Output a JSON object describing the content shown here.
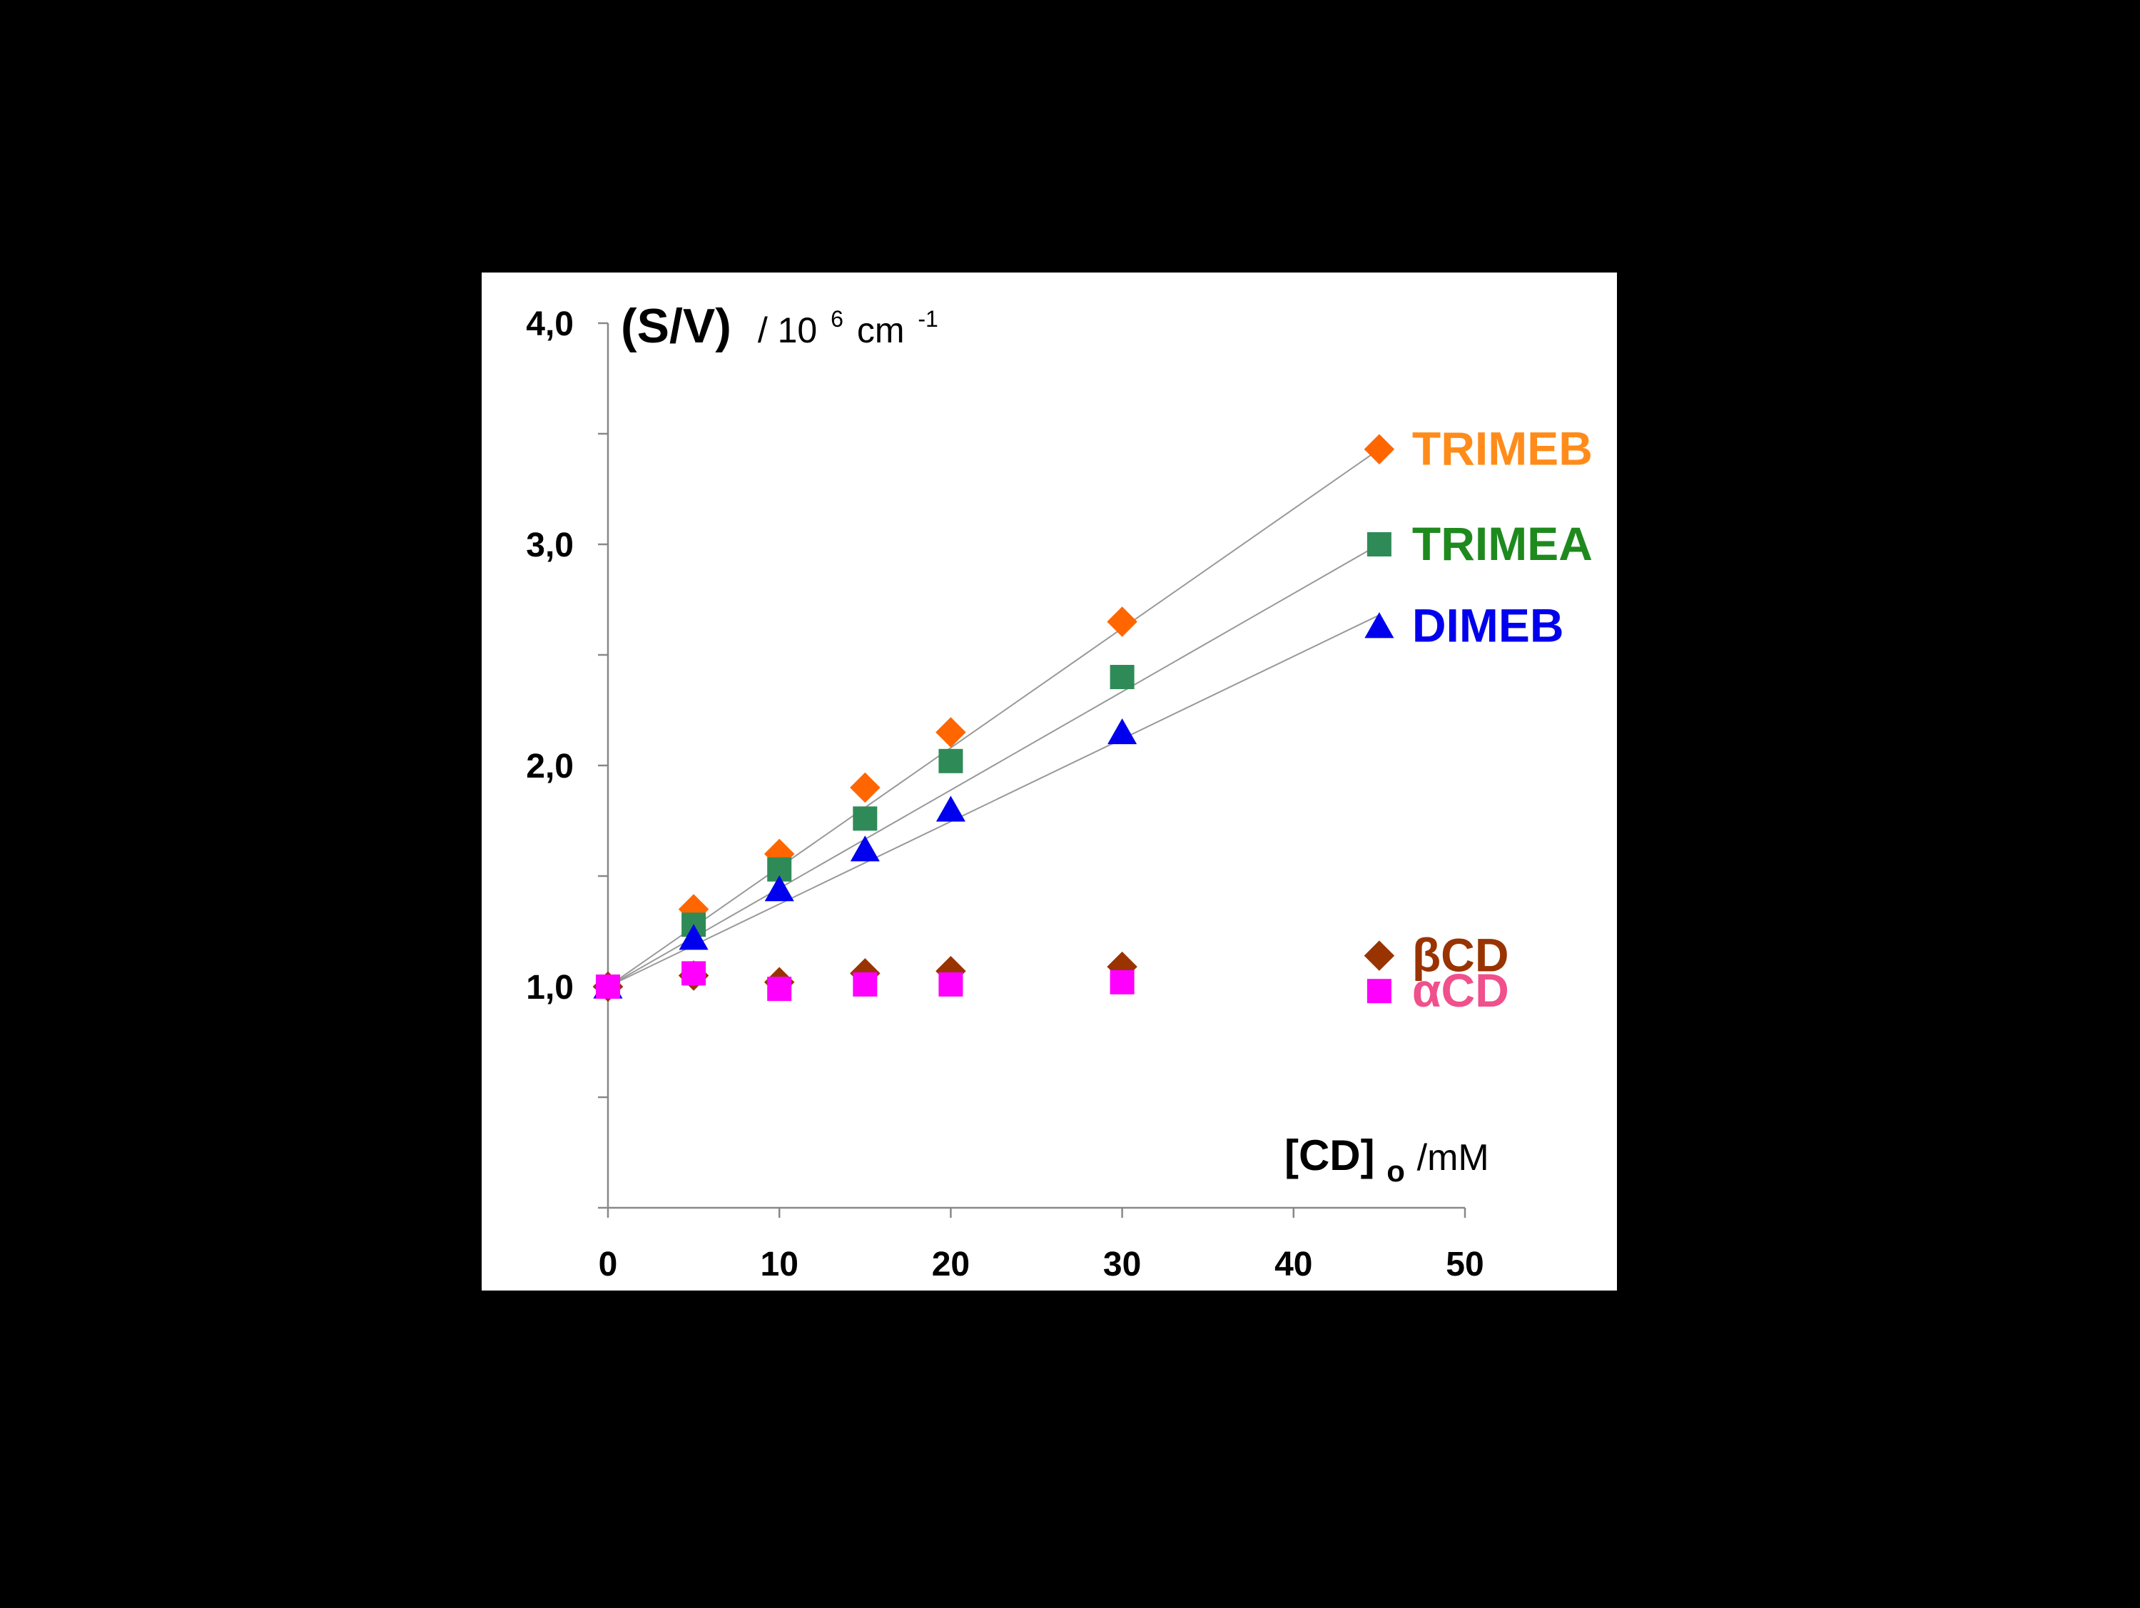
{
  "chart_data": {
    "type": "scatter",
    "title": "",
    "ylabel": {
      "main": "(S/V)",
      "unit_prefix": "/ 10",
      "unit_exp": "6",
      "unit_mid": " cm",
      "unit_exp2": "-1"
    },
    "xlabel": {
      "main": "[CD]",
      "sub": "o",
      "unit": " /mM"
    },
    "xlim": [
      0,
      50
    ],
    "ylim": [
      0.0,
      4.0
    ],
    "x_ticks": [
      0,
      10,
      20,
      30,
      40,
      50
    ],
    "x_tick_labels": [
      "0",
      "10",
      "20",
      "30",
      "40",
      "50"
    ],
    "y_ticks": [
      1.0,
      2.0,
      3.0,
      4.0
    ],
    "y_tick_labels": [
      "1,0",
      "2,0",
      "3,0",
      "4,0"
    ],
    "y_minor_ticks": [
      0.5,
      1.5,
      2.5,
      3.5
    ],
    "grid": false,
    "legend": "inline labels at right end of series",
    "series": [
      {
        "name": "TRIMEB",
        "marker": "diamond",
        "color": "#FF6600",
        "label_color": "#FF8C1A",
        "x": [
          0,
          5,
          10,
          15,
          20,
          30
        ],
        "y": [
          1.0,
          1.35,
          1.6,
          1.9,
          2.15,
          2.65
        ],
        "fit": {
          "x": [
            0,
            45
          ],
          "y": [
            1.0,
            3.43
          ]
        },
        "legend_point": {
          "x": 45,
          "y": 3.43
        }
      },
      {
        "name": "TRIMEA",
        "marker": "square",
        "color": "#2E8B57",
        "label_color": "#1E8A1E",
        "x": [
          0,
          5,
          10,
          15,
          20,
          30
        ],
        "y": [
          1.0,
          1.28,
          1.53,
          1.76,
          2.02,
          2.4
        ],
        "fit": {
          "x": [
            0,
            45
          ],
          "y": [
            1.0,
            3.0
          ]
        },
        "legend_point": {
          "x": 45,
          "y": 3.0
        }
      },
      {
        "name": "DIMEB",
        "marker": "triangle",
        "color": "#0000EE",
        "label_color": "#0000EE",
        "x": [
          0,
          5,
          10,
          15,
          20,
          30
        ],
        "y": [
          1.0,
          1.22,
          1.44,
          1.62,
          1.8,
          2.15
        ],
        "fit": {
          "x": [
            0,
            45
          ],
          "y": [
            1.0,
            2.68
          ]
        },
        "legend_point": {
          "x": 45,
          "y": 2.63
        }
      },
      {
        "name": "βCD",
        "marker": "diamond",
        "color": "#993300",
        "label_color": "#993300",
        "x": [
          0,
          5,
          10,
          15,
          20,
          30
        ],
        "y": [
          1.0,
          1.05,
          1.02,
          1.06,
          1.07,
          1.09
        ],
        "fit": null,
        "legend_point": {
          "x": 45,
          "y": 1.14
        }
      },
      {
        "name": "αCD",
        "marker": "square",
        "color": "#FF00FF",
        "label_color": "#F0508C",
        "x": [
          0,
          5,
          10,
          15,
          20,
          30
        ],
        "y": [
          1.0,
          1.06,
          0.99,
          1.01,
          1.01,
          1.02
        ],
        "fit": null,
        "legend_point": {
          "x": 45,
          "y": 0.98
        }
      }
    ]
  }
}
